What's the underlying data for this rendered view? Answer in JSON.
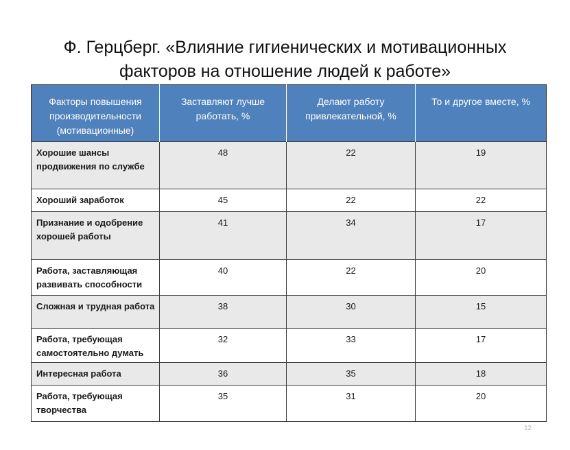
{
  "title": {
    "line1": "Ф. Герцберг. «Влияние гигиенических и мотивационных",
    "line2": "факторов на отношение людей к работе»"
  },
  "table": {
    "headers": [
      "Факторы повышения производительности (мотивационные)",
      "Заставляют лучше работать, %",
      "Делают работу привлекательной, %",
      "То и другое вместе, %"
    ],
    "rows": [
      {
        "factor": "Хорошие шансы продвижения по службе",
        "work_better": "48",
        "attractive": "22",
        "both": "19"
      },
      {
        "factor": "Хороший заработок",
        "work_better": "45",
        "attractive": "22",
        "both": "22"
      },
      {
        "factor": "Признание и одобрение хорошей работы",
        "work_better": "41",
        "attractive": "34",
        "both": "17"
      },
      {
        "factor": "Работа, заставляющая развивать способности",
        "work_better": "40",
        "attractive": "22",
        "both": "20"
      },
      {
        "factor": "Сложная и трудная работа",
        "work_better": "38",
        "attractive": "30",
        "both": "15"
      },
      {
        "factor": "Работа, требующая самостоятельно думать",
        "work_better": "32",
        "attractive": "33",
        "both": "17"
      },
      {
        "factor": "Интересная работа",
        "work_better": "36",
        "attractive": "35",
        "both": "18"
      },
      {
        "factor": "Работа, требующая творчества",
        "work_better": "35",
        "attractive": "31",
        "both": "20"
      }
    ]
  },
  "page_number": "12"
}
